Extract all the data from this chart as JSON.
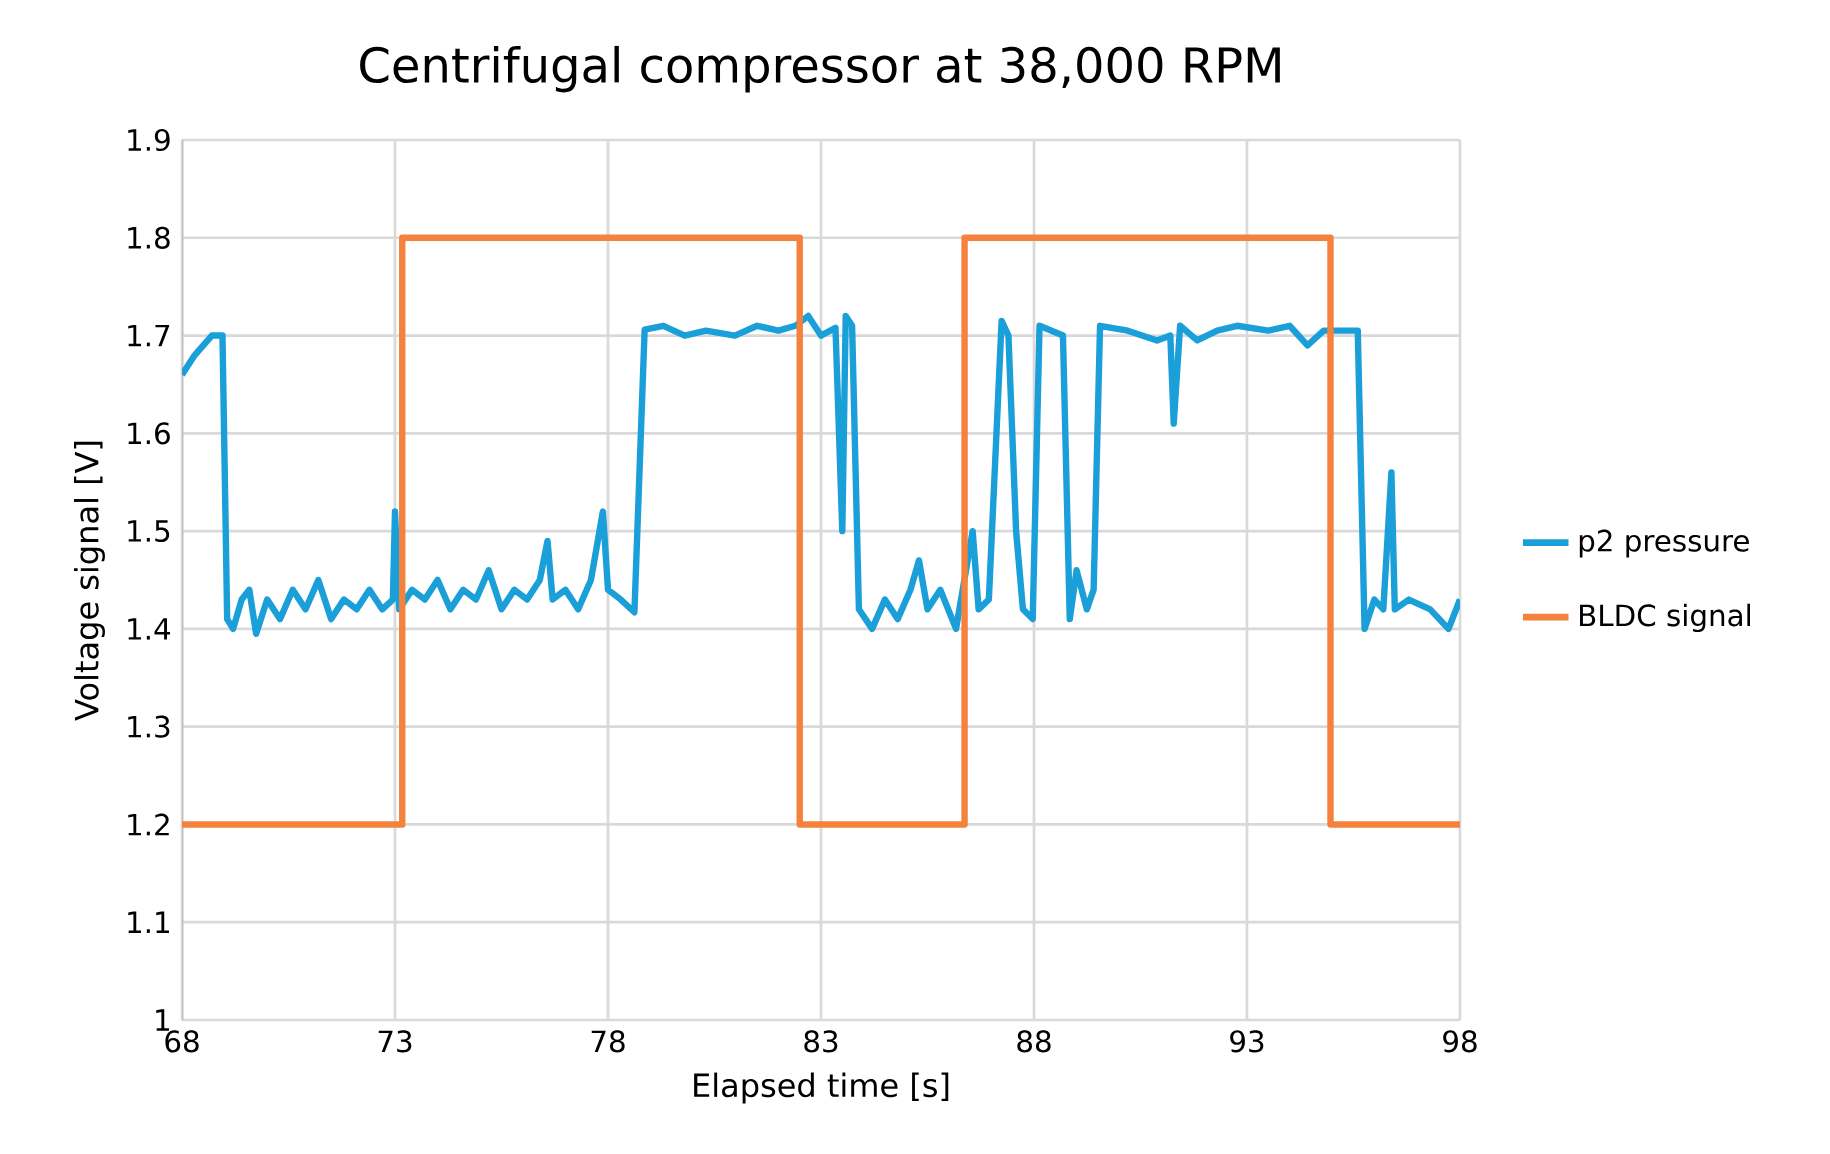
{
  "chart_data": {
    "type": "line",
    "title": "Centrifugal compressor at 38,000 RPM",
    "xlabel": "Elapsed time [s]",
    "ylabel": "Voltage signal [V]",
    "xlim": [
      68,
      98
    ],
    "xticks": [
      68,
      73,
      78,
      83,
      88,
      93,
      98
    ],
    "ylim": [
      1,
      1.9
    ],
    "yticks": [
      1,
      1.1,
      1.2,
      1.3,
      1.4,
      1.5,
      1.6,
      1.7,
      1.8,
      1.9
    ],
    "grid": true,
    "legend": "right",
    "marker": "none",
    "line_style": "solid",
    "series": [
      {
        "name": "p2 pressure",
        "color": "#1a9fd9",
        "x": [
          68.0,
          68.3,
          68.7,
          68.95,
          69.06,
          69.2,
          69.4,
          69.58,
          69.74,
          70.0,
          70.3,
          70.6,
          70.9,
          71.2,
          71.5,
          71.8,
          72.1,
          72.4,
          72.7,
          72.95,
          73.0,
          73.1,
          73.4,
          73.7,
          74.0,
          74.3,
          74.6,
          74.9,
          75.2,
          75.5,
          75.8,
          76.1,
          76.4,
          76.58,
          76.7,
          77.0,
          77.3,
          77.6,
          77.88,
          78.0,
          78.3,
          78.62,
          78.86,
          79.3,
          79.8,
          80.3,
          80.98,
          81.5,
          82.0,
          82.4,
          82.7,
          83.0,
          83.34,
          83.5,
          83.58,
          83.73,
          83.89,
          84.2,
          84.5,
          84.8,
          85.1,
          85.3,
          85.5,
          85.8,
          86.17,
          86.56,
          86.7,
          86.94,
          87.24,
          87.4,
          87.58,
          87.74,
          87.97,
          88.13,
          88.68,
          88.84,
          89.0,
          89.24,
          89.4,
          89.55,
          90.2,
          90.89,
          91.2,
          91.28,
          91.43,
          91.83,
          92.3,
          92.77,
          93.5,
          94.0,
          94.42,
          94.8,
          95.13,
          95.6,
          95.76,
          95.99,
          96.2,
          96.39,
          96.47,
          96.8,
          97.3,
          97.73,
          98.0
        ],
        "values": [
          1.66,
          1.68,
          1.7,
          1.7,
          1.41,
          1.4,
          1.43,
          1.44,
          1.395,
          1.43,
          1.41,
          1.44,
          1.42,
          1.45,
          1.41,
          1.43,
          1.42,
          1.44,
          1.42,
          1.43,
          1.52,
          1.42,
          1.44,
          1.43,
          1.45,
          1.42,
          1.44,
          1.43,
          1.46,
          1.42,
          1.44,
          1.43,
          1.45,
          1.49,
          1.43,
          1.44,
          1.42,
          1.45,
          1.52,
          1.44,
          1.43,
          1.417,
          1.706,
          1.71,
          1.7,
          1.705,
          1.7,
          1.71,
          1.705,
          1.71,
          1.72,
          1.7,
          1.708,
          1.5,
          1.72,
          1.71,
          1.42,
          1.4,
          1.43,
          1.41,
          1.44,
          1.47,
          1.42,
          1.44,
          1.4,
          1.5,
          1.42,
          1.43,
          1.715,
          1.7,
          1.5,
          1.42,
          1.41,
          1.71,
          1.7,
          1.41,
          1.46,
          1.42,
          1.44,
          1.71,
          1.705,
          1.695,
          1.7,
          1.61,
          1.71,
          1.695,
          1.705,
          1.71,
          1.705,
          1.71,
          1.69,
          1.705,
          1.705,
          1.705,
          1.4,
          1.43,
          1.42,
          1.56,
          1.42,
          1.43,
          1.42,
          1.4,
          1.43
        ]
      },
      {
        "name": "BLDC signal",
        "color": "#f4813c",
        "x": [
          68,
          73.17,
          73.17,
          82.5,
          82.5,
          86.37,
          86.37,
          94.96,
          94.96,
          98
        ],
        "values": [
          1.2,
          1.2,
          1.8,
          1.8,
          1.2,
          1.2,
          1.8,
          1.8,
          1.2,
          1.2
        ]
      }
    ]
  }
}
